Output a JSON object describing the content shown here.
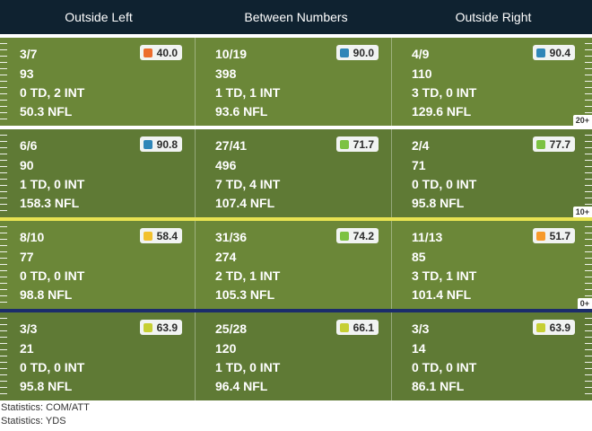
{
  "columns": [
    "Outside Left",
    "Between Numbers",
    "Outside Right"
  ],
  "colors": {
    "header_bg": "#0f2230",
    "field_dark": "#5f7a35",
    "field_light": "#6b8738",
    "line_white": "#ffffff",
    "line_yellow": "#e8e352",
    "line_blue": "#1b2c6b",
    "grade_orange": "#ec6c2c",
    "grade_blue": "#2f86b8",
    "grade_green": "#7cc242",
    "grade_yellow": "#f2c12e",
    "grade_olive": "#c6cf34",
    "grade_amber": "#f79a2b"
  },
  "zones": [
    {
      "marker": "20+",
      "cells": [
        {
          "comp_att": "3/7",
          "yds": "93",
          "td_int": "0 TD, 2 INT",
          "rating": "50.3 NFL",
          "grade": "40.0",
          "grade_color": "#ec6c2c"
        },
        {
          "comp_att": "10/19",
          "yds": "398",
          "td_int": "1 TD, 1 INT",
          "rating": "93.6 NFL",
          "grade": "90.0",
          "grade_color": "#2f86b8"
        },
        {
          "comp_att": "4/9",
          "yds": "110",
          "td_int": "3 TD, 0 INT",
          "rating": "129.6 NFL",
          "grade": "90.4",
          "grade_color": "#2f86b8"
        }
      ]
    },
    {
      "marker": "10+",
      "cells": [
        {
          "comp_att": "6/6",
          "yds": "90",
          "td_int": "1 TD, 0 INT",
          "rating": "158.3 NFL",
          "grade": "90.8",
          "grade_color": "#2f86b8"
        },
        {
          "comp_att": "27/41",
          "yds": "496",
          "td_int": "7 TD, 4 INT",
          "rating": "107.4 NFL",
          "grade": "71.7",
          "grade_color": "#7cc242"
        },
        {
          "comp_att": "2/4",
          "yds": "71",
          "td_int": "0 TD, 0 INT",
          "rating": "95.8 NFL",
          "grade": "77.7",
          "grade_color": "#7cc242"
        }
      ]
    },
    {
      "marker": "0+",
      "cells": [
        {
          "comp_att": "8/10",
          "yds": "77",
          "td_int": "0 TD, 0 INT",
          "rating": "98.8 NFL",
          "grade": "58.4",
          "grade_color": "#f2c12e"
        },
        {
          "comp_att": "31/36",
          "yds": "274",
          "td_int": "2 TD, 1 INT",
          "rating": "105.3 NFL",
          "grade": "74.2",
          "grade_color": "#7cc242"
        },
        {
          "comp_att": "11/13",
          "yds": "85",
          "td_int": "3 TD, 1 INT",
          "rating": "101.4 NFL",
          "grade": "51.7",
          "grade_color": "#f79a2b"
        }
      ]
    },
    {
      "marker": "",
      "cells": [
        {
          "comp_att": "3/3",
          "yds": "21",
          "td_int": "0 TD, 0 INT",
          "rating": "95.8 NFL",
          "grade": "63.9",
          "grade_color": "#c6cf34"
        },
        {
          "comp_att": "25/28",
          "yds": "120",
          "td_int": "1 TD, 0 INT",
          "rating": "96.4 NFL",
          "grade": "66.1",
          "grade_color": "#c6cf34"
        },
        {
          "comp_att": "3/3",
          "yds": "14",
          "td_int": "0 TD, 0 INT",
          "rating": "86.1 NFL",
          "grade": "63.9",
          "grade_color": "#c6cf34"
        }
      ]
    }
  ],
  "footer": {
    "line1": "Statistics: COM/ATT",
    "line2": "Statistics: YDS"
  }
}
